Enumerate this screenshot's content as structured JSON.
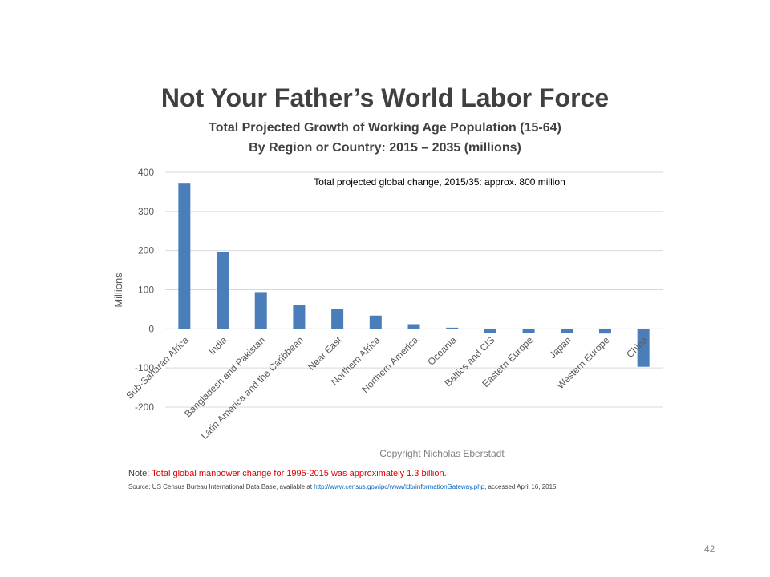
{
  "slide": {
    "title": "Not Your Father’s World Labor Force",
    "page_number": "42"
  },
  "note": {
    "prefix": "Note: ",
    "highlight": "Total global manpower change for 1995-2015 was approximately 1.3 billion."
  },
  "source": {
    "prefix": "Source: US Census Bureau International Data Base, available at ",
    "link": "http://www.census.gov/ipc/www/idb/informationGateway.php",
    "suffix": ", accessed April 16, 2015."
  },
  "chart_data": {
    "type": "bar",
    "title": "",
    "subtitle_lines": [
      "Total Projected Growth of Working Age Population  (15-64)",
      "By Region or Country: 2015 – 2035 (millions)"
    ],
    "xlabel": "",
    "ylabel": "Millions",
    "ylim": [
      -200,
      400
    ],
    "yticks": [
      -200,
      -100,
      0,
      100,
      200,
      300,
      400
    ],
    "grid": true,
    "legend": "none",
    "bar_color": "#4a7ebb",
    "categories": [
      "Sub-Saharan Africa",
      "India",
      "Bangladesh and Pakistan",
      "Latin America and the Caribbean",
      "Near East",
      "Northern Africa",
      "Northern America",
      "Oceania",
      "Baltics and CIS",
      "Eastern Europe",
      "Japan",
      "Western Europe",
      "China"
    ],
    "values": [
      373,
      196,
      94,
      61,
      51,
      34,
      12,
      3,
      -10,
      -10,
      -10,
      -12,
      -97
    ],
    "annotations": [
      "Total projected global change, 2015/35: approx.  800 million",
      "Copyright Nicholas Eberstadt"
    ]
  }
}
